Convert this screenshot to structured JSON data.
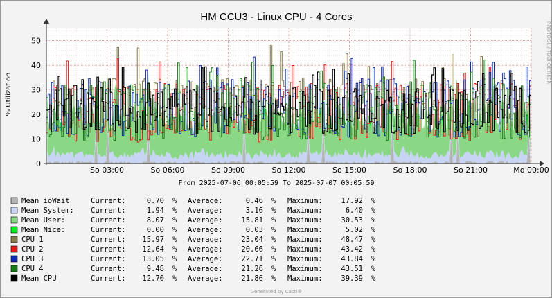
{
  "chart_data": {
    "type": "area",
    "title": "HM CCU3 - Linux CPU - 4 Cores",
    "ylabel": "% Utilization",
    "ylim": [
      0,
      55
    ],
    "yticks": [
      0,
      10,
      20,
      30,
      40,
      50
    ],
    "xrange": [
      "2025-07-06 00:05:59",
      "2025-07-07 00:05:59"
    ],
    "xticks": [
      "So 03:00",
      "So 06:00",
      "So 09:00",
      "So 12:00",
      "So 15:00",
      "So 18:00",
      "So 21:00",
      "Mo 00:00"
    ],
    "grid": true,
    "date_range_text": "From 2025-07-06 00:05:59 To 2025-07-07 00:05:59",
    "watermark": "RRDTOOL / TOBI OETIKER",
    "footer": "Generated by Cacti®",
    "series": [
      {
        "name": "Mean ioWait",
        "color": "#b4b4b4",
        "current": "0.70",
        "average": "0.46",
        "maximum": "17.92"
      },
      {
        "name": "Mean System:",
        "color": "#c8d4f4",
        "current": "1.94",
        "average": "3.16",
        "maximum": "6.40"
      },
      {
        "name": "Mean User:",
        "color": "#8ad886",
        "current": "8.07",
        "average": "15.81",
        "maximum": "30.53"
      },
      {
        "name": "Mean Nice:",
        "color": "#00ee22",
        "current": "0.00",
        "average": "0.03",
        "maximum": "5.02"
      },
      {
        "name": "CPU 1",
        "color": "#857a4a",
        "current": "15.97",
        "average": "23.04",
        "maximum": "48.47"
      },
      {
        "name": "CPU 2",
        "color": "#e01a1a",
        "current": "12.64",
        "average": "20.66",
        "maximum": "43.42"
      },
      {
        "name": "CPU 3",
        "color": "#0a2aa8",
        "current": "13.05",
        "average": "22.71",
        "maximum": "43.84"
      },
      {
        "name": "CPU 4",
        "color": "#1a7a1a",
        "current": "9.48",
        "average": "21.26",
        "maximum": "43.51"
      },
      {
        "name": "Mean CPU",
        "color": "#000000",
        "current": "12.70",
        "average": "21.86",
        "maximum": "39.39"
      }
    ],
    "legend_labels": {
      "current": "Current:",
      "average": "Average:",
      "maximum": "Maximum:",
      "unit": "%"
    }
  }
}
